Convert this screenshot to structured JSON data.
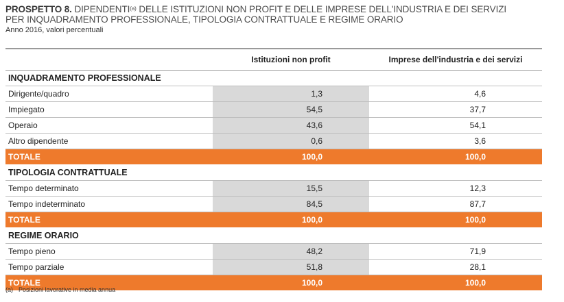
{
  "title": {
    "label": "PROSPETTO 8.",
    "line1_a": "DIPENDENTI",
    "line1_sup": "(a)",
    "line1_b": " DELLE ISTITUZIONI NON PROFIT E DELLE IMPRESE DELL'INDUSTRIA E DEI SERVIZI",
    "line2": "PER INQUADRAMENTO PROFESSIONALE, TIPOLOGIA CONTRATTUALE E REGIME ORARIO",
    "subtitle": "Anno 2016, valori percentuali"
  },
  "table": {
    "headers": [
      "",
      "Istituzioni non profit",
      "Imprese dell'industria e dei servizi"
    ],
    "sections": [
      {
        "name": "INQUADRAMENTO PROFESSIONALE",
        "rows": [
          {
            "label": "Dirigente/quadro",
            "a": "1,3",
            "b": "4,6"
          },
          {
            "label": "Impiegato",
            "a": "54,5",
            "b": "37,7"
          },
          {
            "label": "Operaio",
            "a": "43,6",
            "b": "54,1"
          },
          {
            "label": "Altro dipendente",
            "a": "0,6",
            "b": "3,6"
          }
        ],
        "total": {
          "label": "TOTALE",
          "a": "100,0",
          "b": "100,0"
        }
      },
      {
        "name": "TIPOLOGIA CONTRATTUALE",
        "rows": [
          {
            "label": "Tempo determinato",
            "a": "15,5",
            "b": "12,3"
          },
          {
            "label": "Tempo indeterminato",
            "a": "84,5",
            "b": "87,7"
          }
        ],
        "total": {
          "label": "TOTALE",
          "a": "100,0",
          "b": "100,0"
        }
      },
      {
        "name": "REGIME ORARIO",
        "rows": [
          {
            "label": "Tempo pieno",
            "a": "48,2",
            "b": "71,9"
          },
          {
            "label": "Tempo parziale",
            "a": "51,8",
            "b": "28,1"
          }
        ],
        "total": {
          "label": "TOTALE",
          "a": "100,0",
          "b": "100,0"
        }
      }
    ]
  },
  "footnote": {
    "marker": "(a)",
    "text": "Posizioni lavorative in media annua"
  },
  "colors": {
    "total_bg": "#ee7a2c",
    "shade": "#d9d9d9"
  }
}
